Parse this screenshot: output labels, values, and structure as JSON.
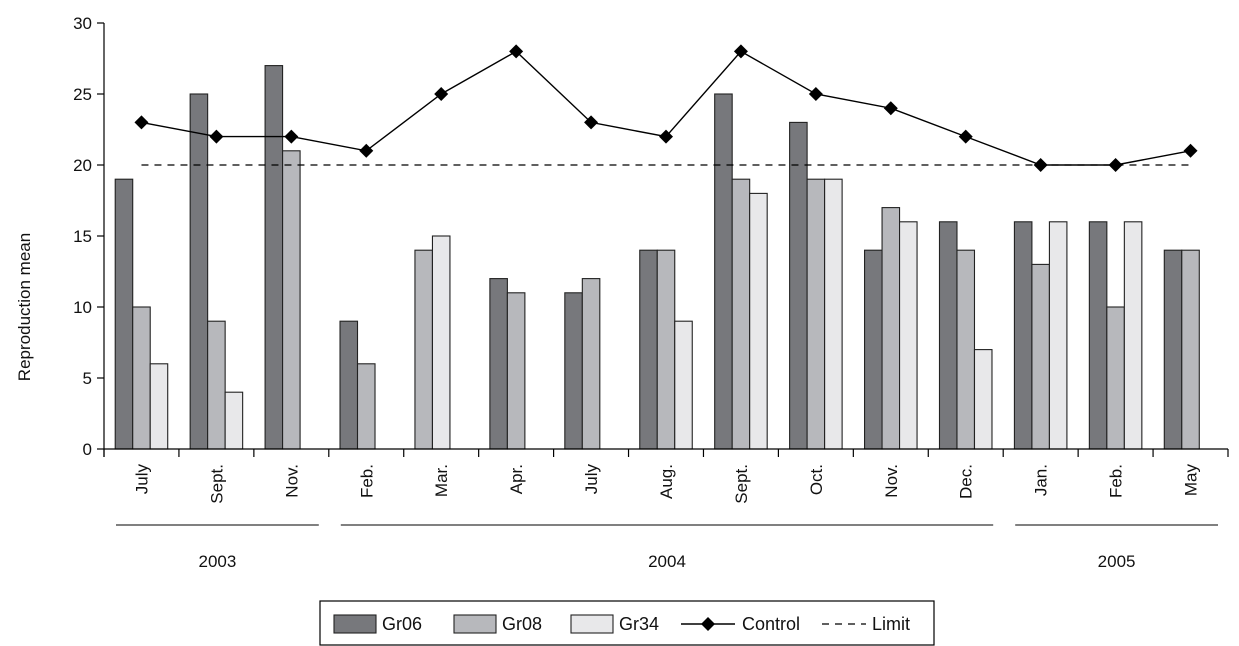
{
  "chart_data": {
    "type": "bar",
    "ylabel": "Reproduction mean",
    "ylim": [
      0,
      30
    ],
    "yticks": [
      0,
      5,
      10,
      15,
      20,
      25,
      30
    ],
    "grid": false,
    "legend_position": "bottom-center",
    "categories": [
      "July",
      "Sept.",
      "Nov.",
      "Feb.",
      "Mar.",
      "Apr.",
      "July",
      "Aug.",
      "Sept.",
      "Oct.",
      "Nov.",
      "Dec.",
      "Jan.",
      "Feb.",
      "May"
    ],
    "year_groups": [
      {
        "label": "2003",
        "first": 0,
        "last": 2
      },
      {
        "label": "2004",
        "first": 3,
        "last": 11
      },
      {
        "label": "2005",
        "first": 12,
        "last": 14
      }
    ],
    "series": [
      {
        "name": "Gr06",
        "kind": "bar",
        "color": "#77787c",
        "values": [
          19,
          25,
          27,
          9,
          null,
          12,
          11,
          14,
          25,
          23,
          14,
          16,
          16,
          16,
          14
        ]
      },
      {
        "name": "Gr08",
        "kind": "bar",
        "color": "#b7b8bc",
        "values": [
          10,
          9,
          21,
          6,
          14,
          11,
          12,
          14,
          19,
          19,
          17,
          14,
          13,
          10,
          14
        ]
      },
      {
        "name": "Gr34",
        "kind": "bar",
        "color": "#e8e8ea",
        "values": [
          6,
          4,
          null,
          null,
          15,
          null,
          null,
          9,
          18,
          19,
          16,
          7,
          16,
          16,
          null
        ]
      },
      {
        "name": "Control",
        "kind": "line",
        "marker": "diamond",
        "color": "#000000",
        "values": [
          23,
          22,
          22,
          21,
          25,
          28,
          23,
          22,
          28,
          25,
          24,
          22,
          20,
          20,
          21
        ]
      },
      {
        "name": "Limit",
        "kind": "dashed-line",
        "color": "#000000",
        "values": [
          20,
          20,
          20,
          20,
          20,
          20,
          20,
          20,
          20,
          20,
          20,
          20,
          20,
          20,
          20
        ]
      }
    ]
  }
}
